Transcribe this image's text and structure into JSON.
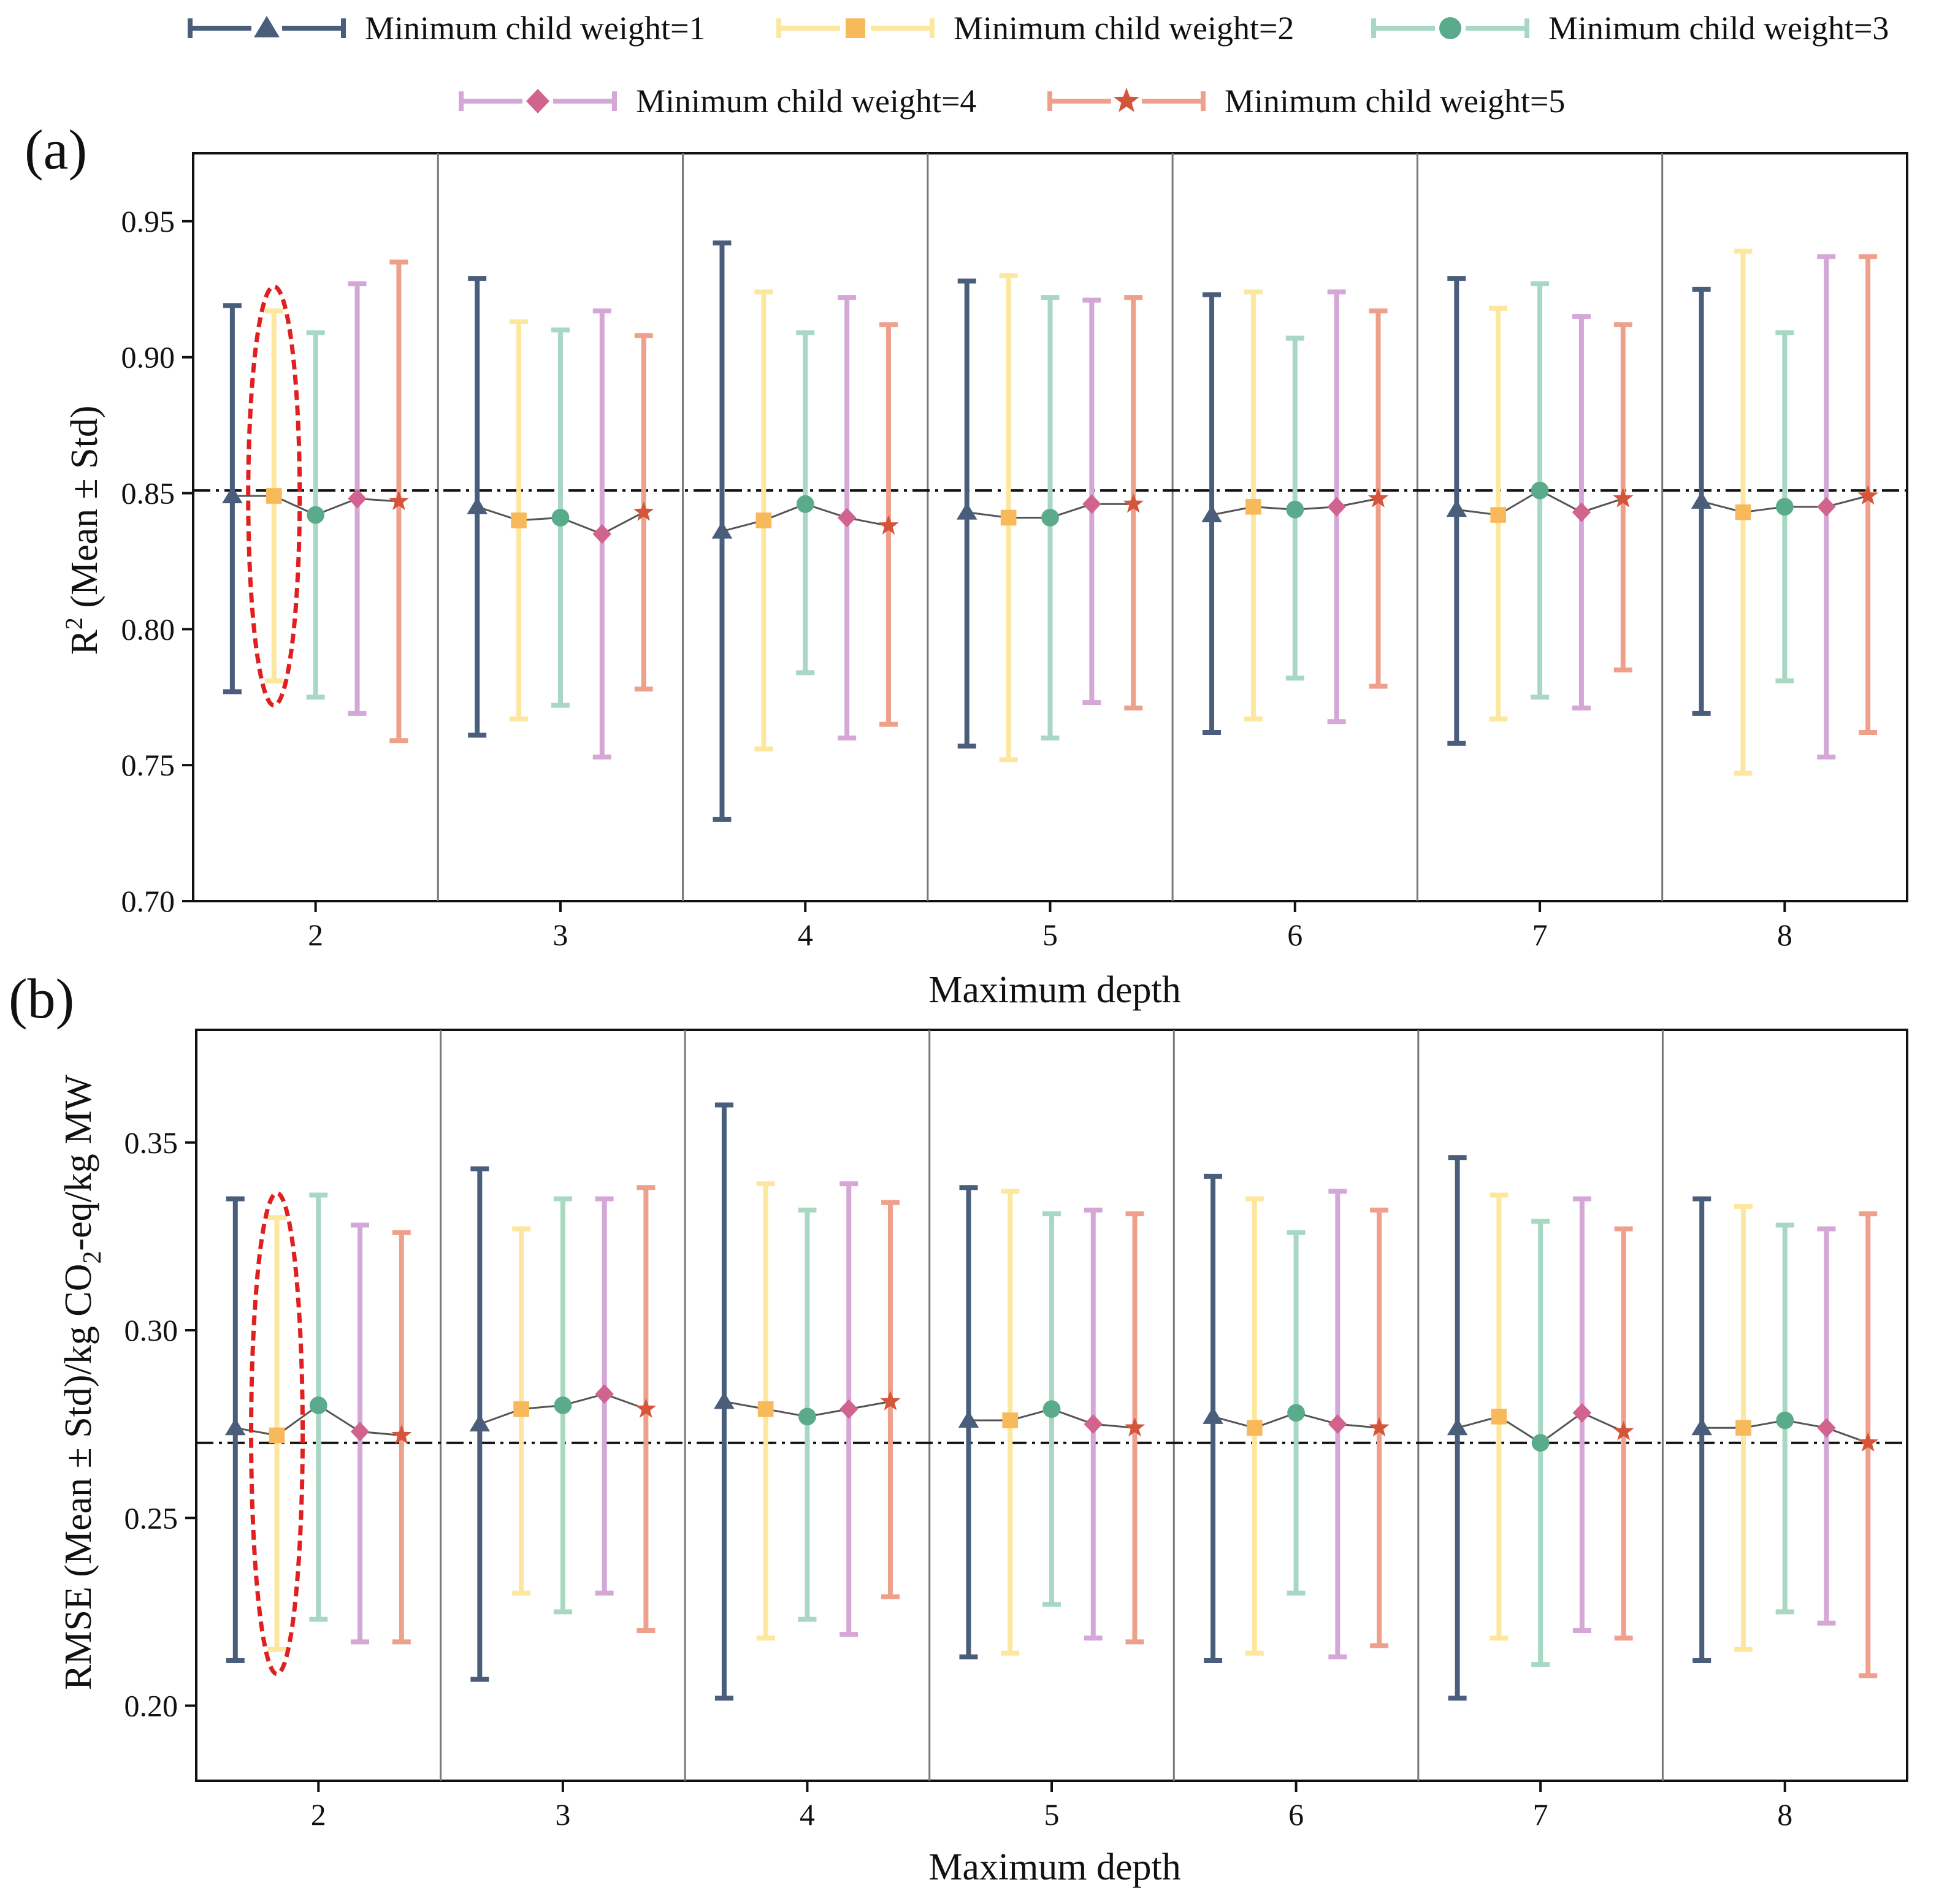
{
  "legend": {
    "items": [
      {
        "label": "Minimum child weight=1",
        "color": "#4a5e7c",
        "marker": "triangle"
      },
      {
        "label": "Minimum child weight=2",
        "color": "#f7b95a",
        "bar_color": "#fde79e",
        "marker": "square"
      },
      {
        "label": "Minimum child weight=3",
        "color": "#5aab8c",
        "bar_color": "#a8d8c3",
        "marker": "circle"
      },
      {
        "label": "Minimum child weight=4",
        "color": "#d0648e",
        "bar_color": "#d4a7d6",
        "marker": "diamond"
      },
      {
        "label": "Minimum child weight=5",
        "color": "#d4553a",
        "bar_color": "#eea08c",
        "marker": "star"
      }
    ]
  },
  "chart_data": [
    {
      "panel": "(a)",
      "type": "line",
      "error_bars": true,
      "xlabel": "Maximum depth",
      "ylabel_main": "R",
      "ylabel_sup": "2",
      "ylabel_rest": "  (Mean ± Std)",
      "ylim": [
        0.7,
        0.975
      ],
      "yticks": [
        "0.70",
        "0.75",
        "0.80",
        "0.85",
        "0.90",
        "0.95"
      ],
      "categories": [
        "2",
        "3",
        "4",
        "5",
        "6",
        "7",
        "8"
      ],
      "reference_line": 0.851,
      "highlight": {
        "category": "2",
        "series": "Minimum child weight=2"
      },
      "series": [
        {
          "name": "Minimum child weight=1",
          "mean": [
            0.849,
            0.845,
            0.836,
            0.843,
            0.842,
            0.844,
            0.847
          ],
          "lower": [
            0.777,
            0.761,
            0.73,
            0.757,
            0.762,
            0.758,
            0.769
          ],
          "upper": [
            0.919,
            0.929,
            0.942,
            0.928,
            0.923,
            0.929,
            0.925
          ]
        },
        {
          "name": "Minimum child weight=2",
          "mean": [
            0.849,
            0.84,
            0.84,
            0.841,
            0.845,
            0.842,
            0.843
          ],
          "lower": [
            0.781,
            0.767,
            0.756,
            0.752,
            0.767,
            0.767,
            0.747
          ],
          "upper": [
            0.917,
            0.913,
            0.924,
            0.93,
            0.924,
            0.918,
            0.939
          ]
        },
        {
          "name": "Minimum child weight=3",
          "mean": [
            0.842,
            0.841,
            0.846,
            0.841,
            0.844,
            0.851,
            0.845
          ],
          "lower": [
            0.775,
            0.772,
            0.784,
            0.76,
            0.782,
            0.775,
            0.781
          ],
          "upper": [
            0.909,
            0.91,
            0.909,
            0.922,
            0.907,
            0.927,
            0.909
          ]
        },
        {
          "name": "Minimum child weight=4",
          "mean": [
            0.848,
            0.835,
            0.841,
            0.846,
            0.845,
            0.843,
            0.845
          ],
          "lower": [
            0.769,
            0.753,
            0.76,
            0.773,
            0.766,
            0.771,
            0.753
          ],
          "upper": [
            0.927,
            0.917,
            0.922,
            0.921,
            0.924,
            0.915,
            0.937
          ]
        },
        {
          "name": "Minimum child weight=5",
          "mean": [
            0.847,
            0.843,
            0.838,
            0.846,
            0.848,
            0.848,
            0.849
          ],
          "lower": [
            0.759,
            0.778,
            0.765,
            0.771,
            0.779,
            0.785,
            0.762
          ],
          "upper": [
            0.935,
            0.908,
            0.912,
            0.922,
            0.917,
            0.912,
            0.937
          ]
        }
      ]
    },
    {
      "panel": "(b)",
      "type": "line",
      "error_bars": true,
      "xlabel": "Maximum depth",
      "ylabel_pre": "RMSE (Mean ± Std)/kg CO",
      "ylabel_sub": "2",
      "ylabel_post": "-eq/kg MW",
      "ylim": [
        0.18,
        0.38
      ],
      "yticks": [
        "0.20",
        "0.25",
        "0.30",
        "0.35"
      ],
      "categories": [
        "2",
        "3",
        "4",
        "5",
        "6",
        "7",
        "8"
      ],
      "reference_line": 0.27,
      "highlight": {
        "category": "2",
        "series": "Minimum child weight=2"
      },
      "series": [
        {
          "name": "Minimum child weight=1",
          "mean": [
            0.274,
            0.275,
            0.281,
            0.276,
            0.277,
            0.274,
            0.274
          ],
          "lower": [
            0.212,
            0.207,
            0.202,
            0.213,
            0.212,
            0.202,
            0.212
          ],
          "upper": [
            0.335,
            0.343,
            0.36,
            0.338,
            0.341,
            0.346,
            0.335
          ]
        },
        {
          "name": "Minimum child weight=2",
          "mean": [
            0.272,
            0.279,
            0.279,
            0.276,
            0.274,
            0.277,
            0.274
          ],
          "lower": [
            0.215,
            0.23,
            0.218,
            0.214,
            0.214,
            0.218,
            0.215
          ],
          "upper": [
            0.33,
            0.327,
            0.339,
            0.337,
            0.335,
            0.336,
            0.333
          ]
        },
        {
          "name": "Minimum child weight=3",
          "mean": [
            0.28,
            0.28,
            0.277,
            0.279,
            0.278,
            0.27,
            0.276
          ],
          "lower": [
            0.223,
            0.225,
            0.223,
            0.227,
            0.23,
            0.211,
            0.225
          ],
          "upper": [
            0.336,
            0.335,
            0.332,
            0.331,
            0.326,
            0.329,
            0.328
          ]
        },
        {
          "name": "Minimum child weight=4",
          "mean": [
            0.273,
            0.283,
            0.279,
            0.275,
            0.275,
            0.278,
            0.274
          ],
          "lower": [
            0.217,
            0.23,
            0.219,
            0.218,
            0.213,
            0.22,
            0.222
          ],
          "upper": [
            0.328,
            0.335,
            0.339,
            0.332,
            0.337,
            0.335,
            0.327
          ]
        },
        {
          "name": "Minimum child weight=5",
          "mean": [
            0.272,
            0.279,
            0.281,
            0.274,
            0.274,
            0.273,
            0.27
          ],
          "lower": [
            0.217,
            0.22,
            0.229,
            0.217,
            0.216,
            0.218,
            0.208
          ],
          "upper": [
            0.326,
            0.338,
            0.334,
            0.331,
            0.332,
            0.327,
            0.331
          ]
        }
      ]
    }
  ]
}
